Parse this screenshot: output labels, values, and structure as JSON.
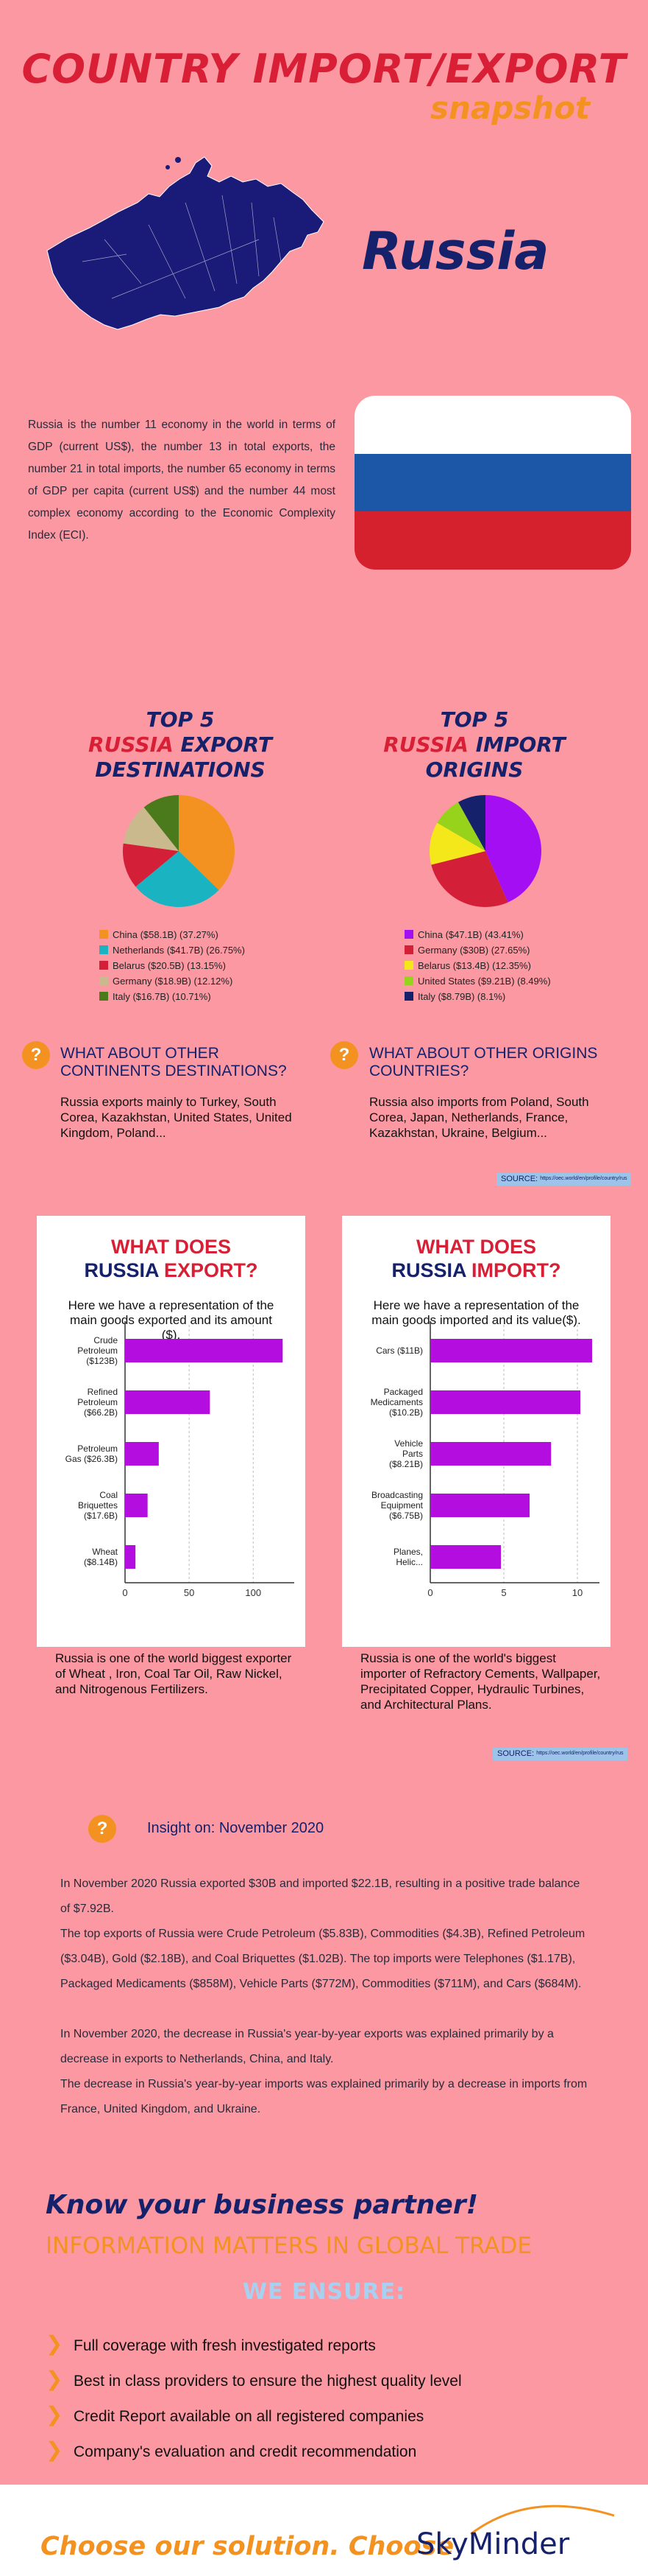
{
  "header": {
    "title": "COUNTRY IMPORT/EXPORT",
    "subtitle": "snapshot",
    "country": "Russia"
  },
  "intro": "Russia is the number 11 economy in the world in terms of GDP (current US$), the number 13 in total exports, the number 21 in total imports, the number 65 economy in terms of GDP per capita (current US$) and the number 44 most complex economy according to the Economic Complexity Index (ECI).",
  "colors": {
    "title_red": "#d81f35",
    "navy": "#15216b",
    "orange": "#f39220",
    "purple": "#b30de0",
    "background": "#fc98a2"
  },
  "export_dest": {
    "title_l1": "TOP 5",
    "title_l2a": "RUSSIA",
    "title_l2b": " EXPORT",
    "title_l3": "DESTINATIONS",
    "legend": [
      "China ($58.1B) (37.27%)",
      "Netherlands ($41.7B) (26.75%)",
      "Belarus ($20.5B) (13.15%)",
      "Germany ($18.9B) (12.12%)",
      "Italy ($16.7B) (10.71%)"
    ],
    "question": "WHAT ABOUT OTHER CONTINENTS DESTINATIONS?",
    "answer": "Russia exports mainly to Turkey, South Corea, Kazakhstan, United States, United Kingdom, Poland..."
  },
  "import_orig": {
    "title_l1": "TOP 5",
    "title_l2a": "RUSSIA",
    "title_l2b": " IMPORT",
    "title_l3": "ORIGINS",
    "legend": [
      "China ($47.1B) (43.41%)",
      "Germany ($30B) (27.65%)",
      "Belarus ($13.4B) (12.35%)",
      "United States ($9.21B) (8.49%)",
      "Italy ($8.79B) (8.1%)"
    ],
    "question": "WHAT ABOUT OTHER ORIGINS COUNTRIES?",
    "answer": "Russia also imports from Poland, South Corea, Japan, Netherlands, France, Kazakhstan, Ukraine, Belgium..."
  },
  "source": {
    "label": "SOURCE:",
    "url": "https://oec.world/en/profile/country/rus"
  },
  "export_card": {
    "title_l1": "WHAT DOES",
    "title_l2a": "RUSSIA",
    "title_l2b": " EXPORT?",
    "sub": "Here we have a representation of the main goods exported and its amount ($).",
    "note": "Russia is one of the world biggest exporter of Wheat , Iron, Coal Tar Oil, Raw Nickel, and Nitrogenous Fertilizers."
  },
  "import_card": {
    "title_l1": "WHAT DOES",
    "title_l2a": "RUSSIA",
    "title_l2b": " IMPORT?",
    "sub": "Here we have a representation of the main goods imported and its value($).",
    "note": "Russia is one of the world's biggest importer of Refractory Cements, Wallpaper, Precipitated Copper, Hydraulic Turbines, and Architectural Plans."
  },
  "chart_data": [
    {
      "type": "pie",
      "title": "",
      "categories": [
        "China",
        "Netherlands",
        "Belarus",
        "Germany",
        "Italy"
      ],
      "values": [
        37.27,
        26.75,
        13.15,
        12.12,
        10.71
      ],
      "colors": [
        "#f39220",
        "#1ab3c2",
        "#d31f37",
        "#c9b98c",
        "#4a7a1c"
      ]
    },
    {
      "type": "pie",
      "title": "",
      "categories": [
        "China",
        "Germany",
        "Belarus",
        "United States",
        "Italy"
      ],
      "values": [
        43.41,
        27.65,
        12.35,
        8.49,
        8.1
      ],
      "colors": [
        "#a30ff2",
        "#d31f37",
        "#f5e81a",
        "#97d31a",
        "#15216b"
      ]
    },
    {
      "type": "bar",
      "orientation": "horizontal",
      "categories": [
        "Crude Petroleum ($123B)",
        "Refined Petroleum ($66.2B)",
        "Petroleum Gas ($26.3B)",
        "Coal Briquettes ($17.6B)",
        "Wheat ($8.14B)"
      ],
      "values": [
        123,
        66.2,
        26.3,
        17.6,
        8.14
      ],
      "xticks": [
        "0",
        "50",
        "100"
      ],
      "xlim": [
        0,
        132
      ],
      "grid": true
    },
    {
      "type": "bar",
      "orientation": "horizontal",
      "categories": [
        "Cars ($11B)",
        "Packaged Medicaments ($10.2B)",
        "Vehicle Parts ($8.21B)",
        "Broadcasting Equipment ($6.75B)",
        "Planes, Helic..."
      ],
      "values": [
        11,
        10.2,
        8.21,
        6.75,
        4.8
      ],
      "xticks": [
        "0",
        "5",
        "10"
      ],
      "xlim": [
        0,
        11.5
      ],
      "grid": true
    }
  ],
  "insight": {
    "title": "Insight on: November 2020",
    "p1": "In November 2020 Russia exported $30B and imported $22.1B, resulting in a positive trade balance of $7.92B.",
    "p2": "The top exports of Russia were Crude Petroleum ($5.83B), Commodities ($4.3B), Refined Petroleum ($3.04B), Gold ($2.18B), and Coal Briquettes ($1.02B). The top imports were Telephones ($1.17B), Packaged Medicaments ($858M), Vehicle Parts ($772M), Commodities ($711M), and Cars ($684M).",
    "p3": "In November 2020, the decrease in Russia's year-by-year exports was explained primarily by a decrease in exports to Netherlands, China, and Italy.",
    "p4": "The decrease in Russia's year-by-year imports was explained primarily by a decrease in imports from France, United Kingdom, and Ukraine."
  },
  "promo": {
    "know": "Know your business partner!",
    "info": "INFORMATION MATTERS IN GLOBAL TRADE",
    "ensure": "WE ENSURE:",
    "bullets": [
      "Full coverage with fresh investigated reports",
      "Best in class providers to ensure the highest quality level",
      "Credit Report available on all registered companies",
      "Company's evaluation and credit recommendation"
    ]
  },
  "footer": {
    "choose": "Choose our solution. Choose",
    "brand": "SkyMinder"
  }
}
